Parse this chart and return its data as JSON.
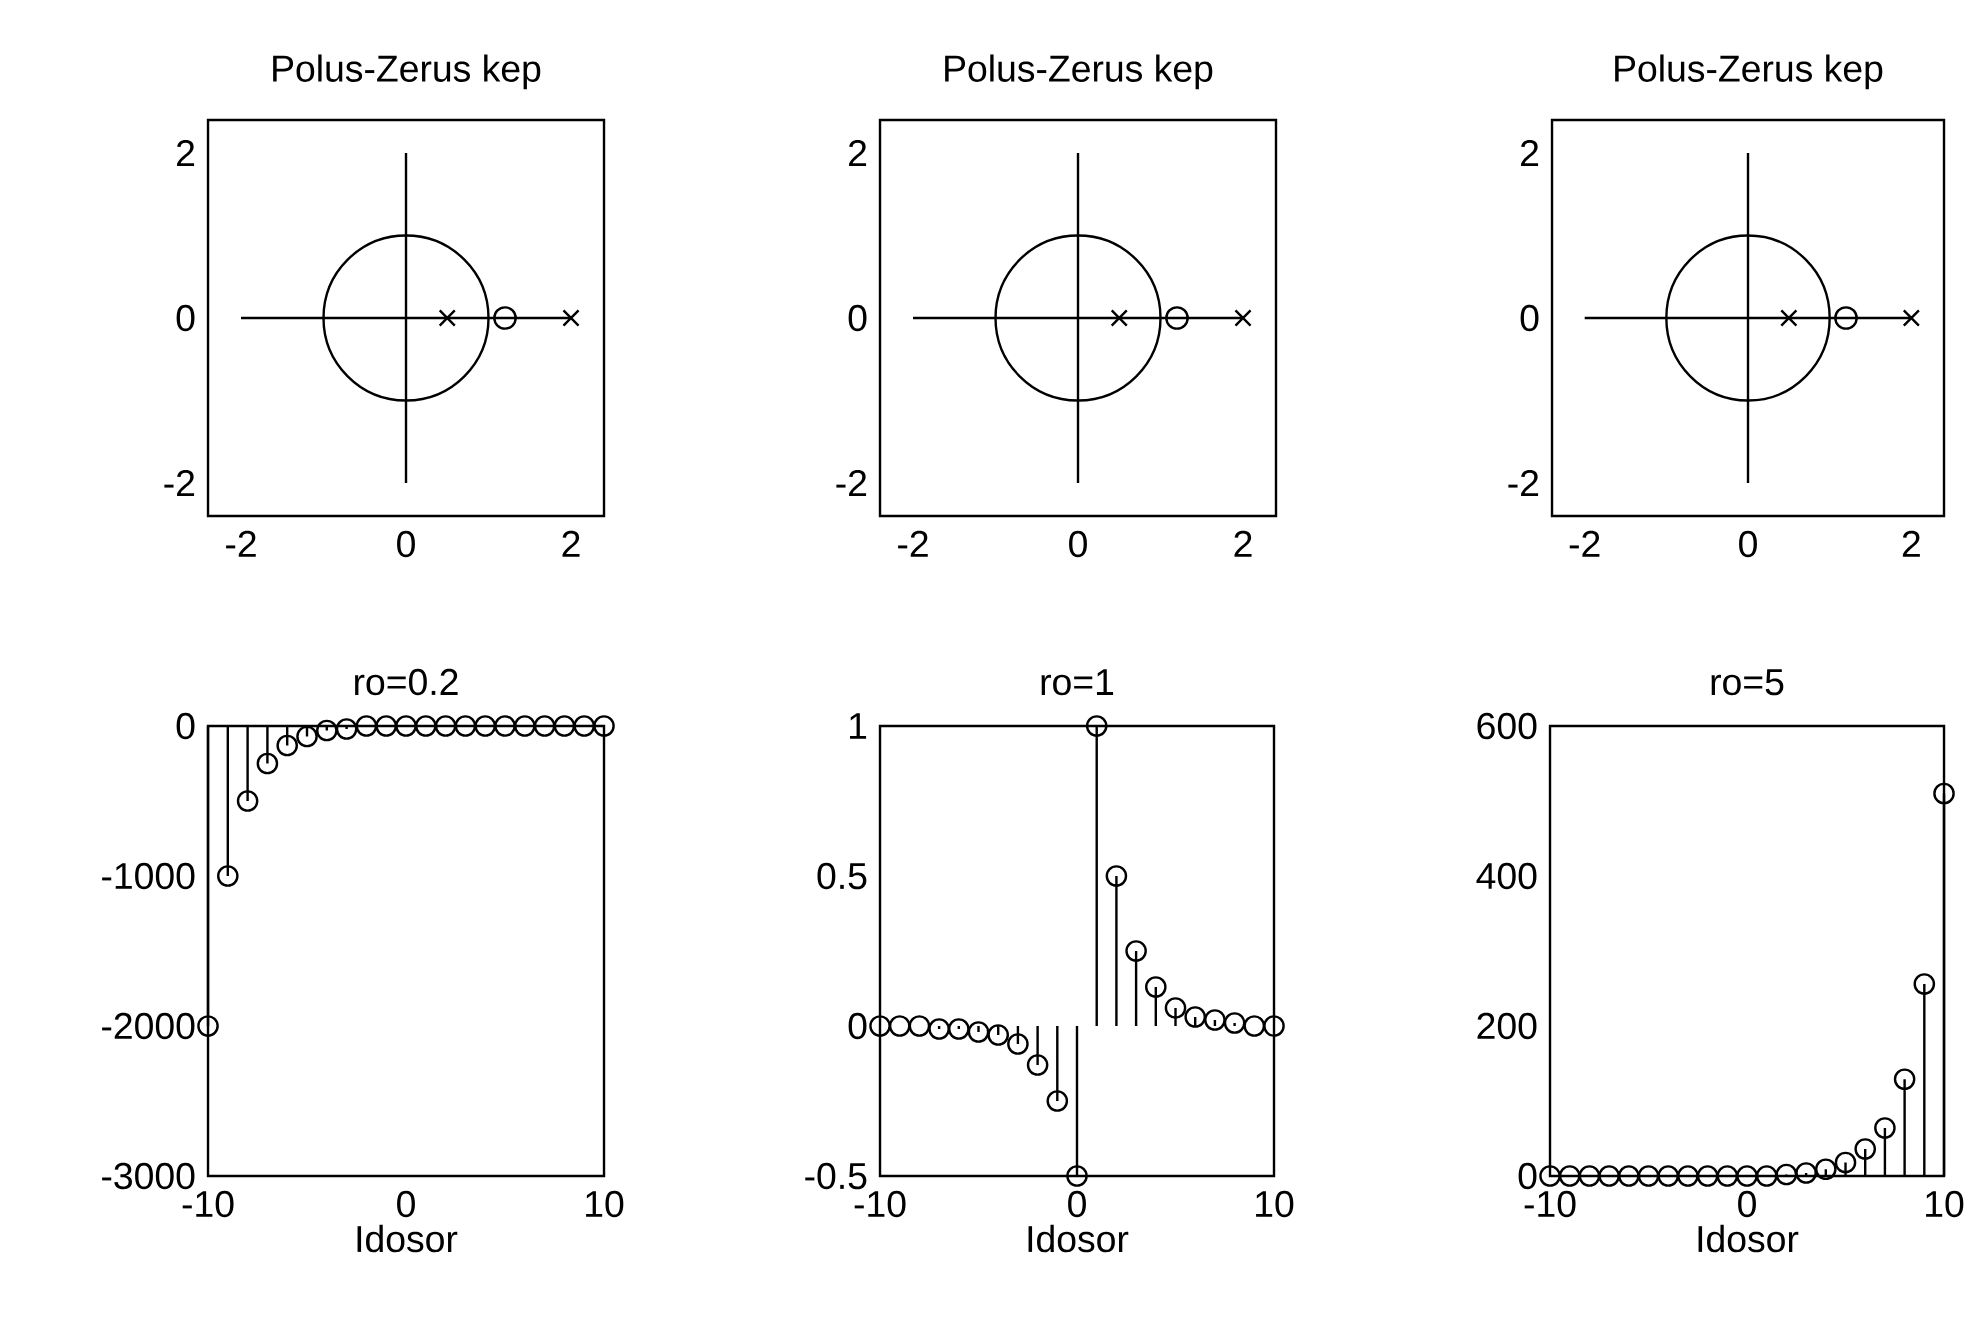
{
  "chart_data": [
    {
      "type": "line",
      "title": "Polus-Zerus kep",
      "xlim": [
        -2.4,
        2.4
      ],
      "ylim": [
        -2.4,
        2.4
      ],
      "xticks": [
        -2,
        0,
        2
      ],
      "yticks": [
        -2,
        0,
        2
      ],
      "series": [
        {
          "type": "line",
          "color": "#000000",
          "x": [
            -2,
            2
          ],
          "values": [
            0,
            0
          ]
        },
        {
          "type": "line",
          "color": "#000000",
          "x": [
            0,
            0
          ],
          "values": [
            -2,
            2
          ]
        },
        {
          "type": "scatter",
          "marker": "circle",
          "color": "#000000",
          "x": [
            1.2
          ],
          "values": [
            0
          ]
        },
        {
          "type": "scatter",
          "marker": "cross",
          "color": "#000000",
          "x": [
            0.5,
            2
          ],
          "values": [
            0,
            0
          ]
        }
      ]
    },
    {
      "type": "line",
      "title": "Polus-Zerus kep",
      "xlim": [
        -2.4,
        2.4
      ],
      "ylim": [
        -2.4,
        2.4
      ],
      "xticks": [
        -2,
        0,
        2
      ],
      "yticks": [
        -2,
        0,
        2
      ],
      "series": [
        {
          "type": "line",
          "color": "#000000",
          "x": [
            -2,
            2
          ],
          "values": [
            0,
            0
          ]
        },
        {
          "type": "line",
          "color": "#000000",
          "x": [
            0,
            0
          ],
          "values": [
            -2,
            2
          ]
        },
        {
          "type": "scatter",
          "marker": "circle",
          "color": "#000000",
          "x": [
            1.2
          ],
          "values": [
            0
          ]
        },
        {
          "type": "scatter",
          "marker": "cross",
          "color": "#000000",
          "x": [
            0.5,
            2
          ],
          "values": [
            0,
            0
          ]
        }
      ]
    },
    {
      "type": "line",
      "title": "Polus-Zerus kep",
      "xlim": [
        -2.4,
        2.4
      ],
      "ylim": [
        -2.4,
        2.4
      ],
      "xticks": [
        -2,
        0,
        2
      ],
      "yticks": [
        -2,
        0,
        2
      ],
      "series": [
        {
          "type": "line",
          "color": "#000000",
          "x": [
            -2,
            2
          ],
          "values": [
            0,
            0
          ]
        },
        {
          "type": "line",
          "color": "#000000",
          "x": [
            0,
            0
          ],
          "values": [
            -2,
            2
          ]
        },
        {
          "type": "scatter",
          "marker": "circle",
          "color": "#000000",
          "x": [
            1.2
          ],
          "values": [
            0
          ]
        },
        {
          "type": "scatter",
          "marker": "cross",
          "color": "#000000",
          "x": [
            0.5,
            2
          ],
          "values": [
            0,
            0
          ]
        }
      ]
    },
    {
      "type": "lollipop",
      "title": "ro=0.2",
      "xlabel": "Idosor",
      "marker": "circle",
      "color": "#000000",
      "xlim": [
        -10,
        10
      ],
      "ylim": [
        -3000,
        0
      ],
      "xticks": [
        -10,
        0,
        10
      ],
      "yticks": [
        -3000,
        -2000,
        -1000,
        0
      ],
      "x": [
        -10,
        -9,
        -8,
        -7,
        -6,
        -5,
        -4,
        -3,
        -2,
        -1,
        0,
        1,
        2,
        3,
        4,
        5,
        6,
        7,
        8,
        9,
        10
      ],
      "values": [
        -2000,
        -1000,
        -500,
        -250,
        -130,
        -70,
        -30,
        -20,
        0,
        0,
        0,
        0,
        0,
        0,
        0,
        0,
        0,
        0,
        0,
        0,
        0
      ]
    },
    {
      "type": "lollipop",
      "title": "ro=1",
      "xlabel": "Idosor",
      "marker": "circle",
      "color": "#000000",
      "xlim": [
        -10,
        10
      ],
      "ylim": [
        -0.5,
        1
      ],
      "xticks": [
        -10,
        0,
        10
      ],
      "yticks": [
        -0.5,
        0,
        0.5,
        1
      ],
      "x": [
        -10,
        -9,
        -8,
        -7,
        -6,
        -5,
        -4,
        -3,
        -2,
        -1,
        0,
        1,
        2,
        3,
        4,
        5,
        6,
        7,
        8,
        9,
        10
      ],
      "values": [
        0,
        0,
        0,
        -0.01,
        -0.01,
        -0.02,
        -0.03,
        -0.06,
        -0.13,
        -0.25,
        -0.5,
        1,
        0.5,
        0.25,
        0.13,
        0.06,
        0.03,
        0.02,
        0.01,
        0,
        0
      ]
    },
    {
      "type": "lollipop",
      "title": "ro=5",
      "xlabel": "Idosor",
      "marker": "circle",
      "color": "#000000",
      "xlim": [
        -10,
        10
      ],
      "ylim": [
        0,
        600
      ],
      "xticks": [
        -10,
        0,
        10
      ],
      "yticks": [
        0,
        200,
        400,
        600
      ],
      "x": [
        -10,
        -9,
        -8,
        -7,
        -6,
        -5,
        -4,
        -3,
        -2,
        -1,
        0,
        1,
        2,
        3,
        4,
        5,
        6,
        7,
        8,
        9,
        10
      ],
      "values": [
        0,
        0,
        0,
        0,
        0,
        0,
        0,
        0,
        0,
        0,
        0,
        0,
        2,
        4,
        9,
        18,
        36,
        64,
        129,
        256,
        510
      ]
    }
  ]
}
